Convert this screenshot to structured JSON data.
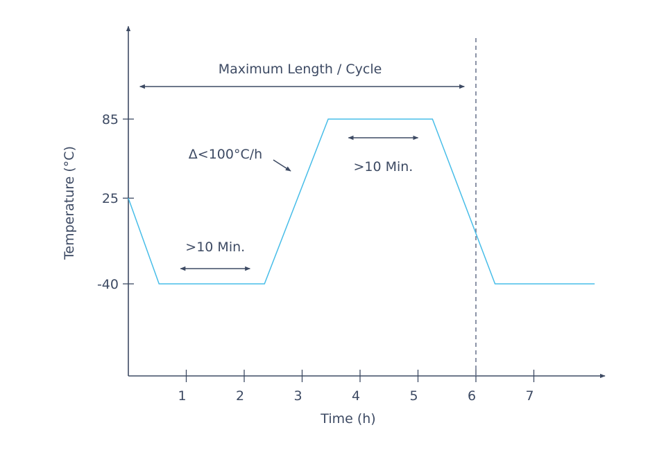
{
  "chart_data": {
    "type": "line",
    "xlabel": "Time (h)",
    "ylabel": "Temperature (°C)",
    "x_ticks": [
      1,
      2,
      3,
      4,
      5,
      6,
      7
    ],
    "y_ticks": [
      85,
      25,
      -40
    ],
    "series": [
      {
        "x": [
          0,
          0.53,
          2.35,
          3.45,
          5.25,
          6.33,
          8.05
        ],
        "y": [
          25,
          -40,
          -40,
          85,
          85,
          -40,
          -40
        ]
      }
    ],
    "reference_line_x": 6,
    "colors": {
      "series": "#47bde8",
      "axis": "#3d4a63",
      "reference": "#6e7890"
    },
    "annotations": {
      "cycle_label": "Maximum Length / Cycle",
      "cycle_span": [
        0.2,
        5.8
      ],
      "ramp_label": "Δ<100°C/h",
      "dwell_high_label": ">10 Min.",
      "dwell_high_span": [
        3.8,
        5.0
      ],
      "dwell_low_label": ">10 Min.",
      "dwell_low_span": [
        0.9,
        2.1
      ]
    }
  }
}
